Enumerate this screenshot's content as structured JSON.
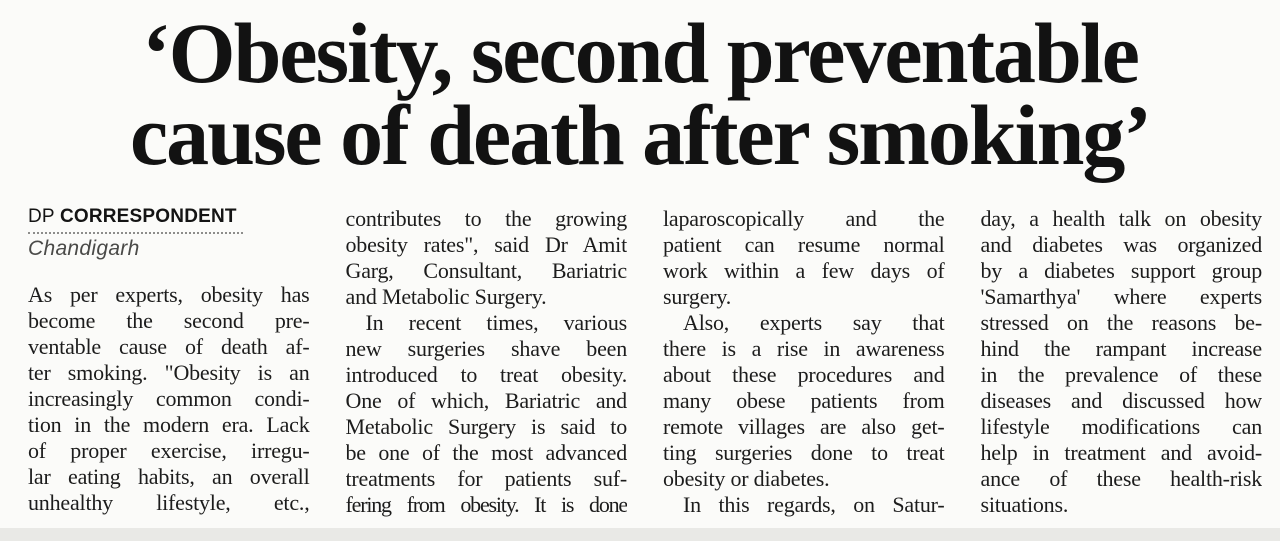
{
  "headline": {
    "line1": "‘Obesity, second preventable",
    "line2": "cause of death after smoking’"
  },
  "byline": {
    "prefix": "DP",
    "name": "CORRESPONDENT",
    "location": "Chandigarh"
  },
  "columns": [
    {
      "lines": [
        {
          "t": "As per experts, obesity has"
        },
        {
          "t": "become the second pre-"
        },
        {
          "t": "ventable cause of death af-"
        },
        {
          "t": "ter smoking. \"Obesity is an"
        },
        {
          "t": "increasingly common condi-"
        },
        {
          "t": "tion in the modern era. Lack"
        },
        {
          "t": "of proper exercise, irregu-"
        },
        {
          "t": "lar eating habits, an overall"
        },
        {
          "t": "unhealthy lifestyle, etc.,"
        }
      ]
    },
    {
      "lines": [
        {
          "t": "contributes to the growing"
        },
        {
          "t": "obesity rates\", said Dr Amit"
        },
        {
          "t": "Garg, Consultant, Bariatric"
        },
        {
          "t": "and Metabolic Surgery.",
          "end": true
        },
        {
          "t": "In recent times, various",
          "indent": true
        },
        {
          "t": "new surgeries shave been"
        },
        {
          "t": "introduced to treat obesity."
        },
        {
          "t": "One of which, Bariatric and"
        },
        {
          "t": "Metabolic Surgery is said to"
        },
        {
          "t": "be one of the most advanced"
        },
        {
          "t": "treatments for patients suf-"
        },
        {
          "t": "fering from obesity. It is done",
          "tight": true
        }
      ]
    },
    {
      "lines": [
        {
          "t": "laparoscopically and the"
        },
        {
          "t": "patient can resume normal"
        },
        {
          "t": "work within a few days of"
        },
        {
          "t": "surgery.",
          "end": true
        },
        {
          "t": "Also, experts say that",
          "indent": true
        },
        {
          "t": "there is a rise in awareness"
        },
        {
          "t": "about these procedures and"
        },
        {
          "t": "many obese patients from"
        },
        {
          "t": "remote villages are also get-"
        },
        {
          "t": "ting surgeries done to treat"
        },
        {
          "t": "obesity or diabetes.",
          "end": true
        },
        {
          "t": "In this regards, on Satur-",
          "indent": true
        }
      ]
    },
    {
      "lines": [
        {
          "t": "day, a health talk on obesity"
        },
        {
          "t": "and diabetes was organized"
        },
        {
          "t": "by a diabetes support group"
        },
        {
          "t": "'Samarthya' where experts"
        },
        {
          "t": "stressed on the reasons be-"
        },
        {
          "t": "hind the rampant increase"
        },
        {
          "t": "in the prevalence of these"
        },
        {
          "t": "diseases and discussed how"
        },
        {
          "t": "lifestyle modifications can"
        },
        {
          "t": "help in treatment and avoid-"
        },
        {
          "t": "ance of these health-risk"
        },
        {
          "t": "situations.",
          "end": true
        }
      ]
    }
  ]
}
